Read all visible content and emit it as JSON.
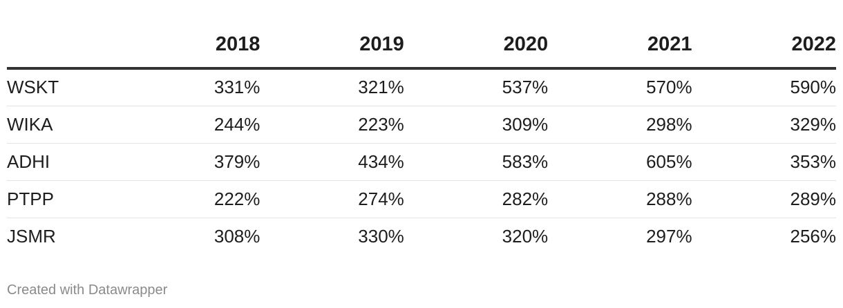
{
  "chart_data": {
    "type": "table",
    "columns": [
      "",
      "2018",
      "2019",
      "2020",
      "2021",
      "2022"
    ],
    "rows": [
      {
        "name": "WSKT",
        "values": [
          "331%",
          "321%",
          "537%",
          "570%",
          "590%"
        ]
      },
      {
        "name": "WIKA",
        "values": [
          "244%",
          "223%",
          "309%",
          "298%",
          "329%"
        ]
      },
      {
        "name": "ADHI",
        "values": [
          "379%",
          "434%",
          "583%",
          "605%",
          "353%"
        ]
      },
      {
        "name": "PTPP",
        "values": [
          "222%",
          "274%",
          "282%",
          "288%",
          "289%"
        ]
      },
      {
        "name": "JSMR",
        "values": [
          "308%",
          "330%",
          "320%",
          "297%",
          "256%"
        ]
      }
    ]
  },
  "footer": {
    "credit": "Created with Datawrapper"
  },
  "colors": {
    "text": "#1d1d1d",
    "header_rule": "#333333",
    "row_rule": "#e3e3e3",
    "footer_text": "#8a8a8a"
  }
}
